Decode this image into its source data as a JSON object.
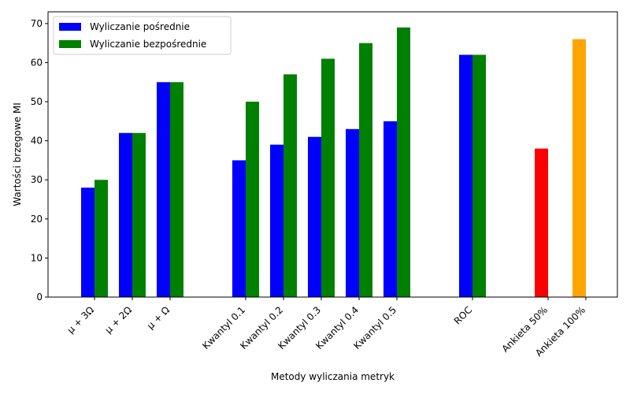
{
  "chart_data": {
    "type": "bar",
    "title": "",
    "xlabel": "Metody wyliczania metryk",
    "ylabel": "Wartości brzegowe MI",
    "ylim": [
      0,
      73
    ],
    "yticks": [
      0,
      10,
      20,
      30,
      40,
      50,
      60,
      70
    ],
    "grid": false,
    "legend": {
      "placement": "top-left"
    },
    "categories": [
      "μ + 3Ω",
      "μ + 2Ω",
      "μ + Ω",
      "Kwantyl 0.1",
      "Kwantyl 0.2",
      "Kwantyl 0.3",
      "Kwantyl 0.4",
      "Kwantyl 0.5",
      "ROC",
      "Ankieta 50%",
      "Ankieta 100%"
    ],
    "series": [
      {
        "name": "Wyliczanie pośrednie",
        "color": "#0000ff",
        "values": [
          28,
          42,
          55,
          35,
          39,
          41,
          43,
          45,
          62,
          null,
          null
        ]
      },
      {
        "name": "Wyliczanie bezpośrednie",
        "color": "#008000",
        "values": [
          30,
          42,
          55,
          50,
          57,
          61,
          65,
          69,
          62,
          null,
          null
        ]
      },
      {
        "name": "",
        "color": "#ff0000",
        "values": [
          null,
          null,
          null,
          null,
          null,
          null,
          null,
          null,
          null,
          38,
          null
        ]
      },
      {
        "name": "",
        "color": "#ffa500",
        "values": [
          null,
          null,
          null,
          null,
          null,
          null,
          null,
          null,
          null,
          null,
          66
        ]
      }
    ]
  }
}
